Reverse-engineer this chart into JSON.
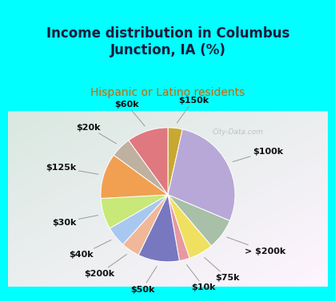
{
  "title": "Income distribution in Columbus\nJunction, IA (%)",
  "subtitle": "Hispanic or Latino residents",
  "bg_cyan": "#00FFFF",
  "bg_chart_colors": [
    "#e8f5f0",
    "#d0ede0",
    "#c8eae0"
  ],
  "labels": [
    "$150k",
    "$100k",
    "> $200k",
    "$75k",
    "$10k",
    "$50k",
    "$200k",
    "$40k",
    "$30k",
    "$125k",
    "$20k",
    "$60k"
  ],
  "values": [
    3.5,
    28.0,
    7.5,
    6.0,
    2.5,
    10.0,
    4.5,
    5.0,
    7.5,
    11.0,
    5.0,
    10.0
  ],
  "colors": [
    "#c8a830",
    "#b8a8d8",
    "#a8bfa8",
    "#f0e060",
    "#e898a0",
    "#7878c0",
    "#f0b898",
    "#a8c8f0",
    "#c8e878",
    "#f0a050",
    "#c0b0a0",
    "#e07880"
  ],
  "label_fontsize": 8,
  "title_fontsize": 12,
  "subtitle_fontsize": 10,
  "watermark": "City-Data.com",
  "title_color": "#1a1a3a",
  "subtitle_color": "#cc6600",
  "label_color": "#111111"
}
